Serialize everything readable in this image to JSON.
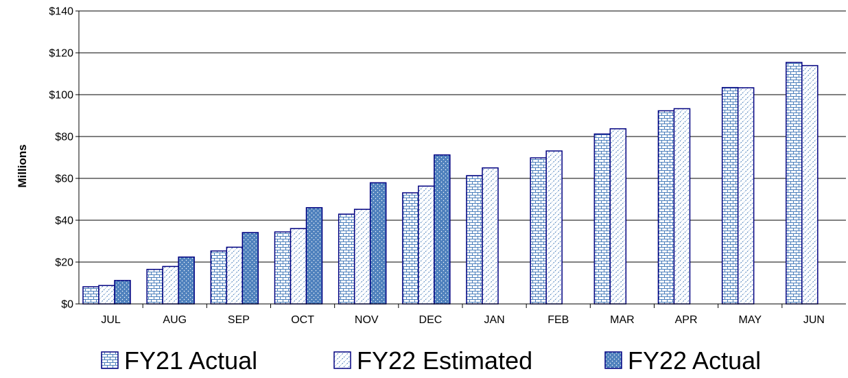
{
  "chart_data": {
    "type": "bar",
    "ylabel": "Millions",
    "ylim": [
      0,
      140
    ],
    "y_ticks": [
      "$0",
      "$20",
      "$40",
      "$60",
      "$80",
      "$100",
      "$120",
      "$140"
    ],
    "categories": [
      "JUL",
      "AUG",
      "SEP",
      "OCT",
      "NOV",
      "DEC",
      "JAN",
      "FEB",
      "MAR",
      "APR",
      "MAY",
      "JUN"
    ],
    "series": [
      {
        "name": "FY21 Actual",
        "pattern": "brick",
        "color": "#4A7EBB",
        "values": [
          8.2,
          16.5,
          25.3,
          34.4,
          42.9,
          53.1,
          61.3,
          69.8,
          81.2,
          92.3,
          103.4,
          115.4
        ]
      },
      {
        "name": "FY22 Estimated",
        "pattern": "diagonal",
        "color": "#4A7EBB",
        "values": [
          8.8,
          17.9,
          27.1,
          36.0,
          45.2,
          56.3,
          65.0,
          73.1,
          83.7,
          93.3,
          103.3,
          113.9
        ]
      },
      {
        "name": "FY22 Actual",
        "pattern": "dots",
        "color": "#4F81BD",
        "values": [
          11.2,
          22.4,
          34.1,
          46.0,
          57.9,
          71.2,
          null,
          null,
          null,
          null,
          null,
          null
        ]
      }
    ],
    "grid": true,
    "legend_position": "bottom",
    "bar_edge_color": "#000080"
  }
}
